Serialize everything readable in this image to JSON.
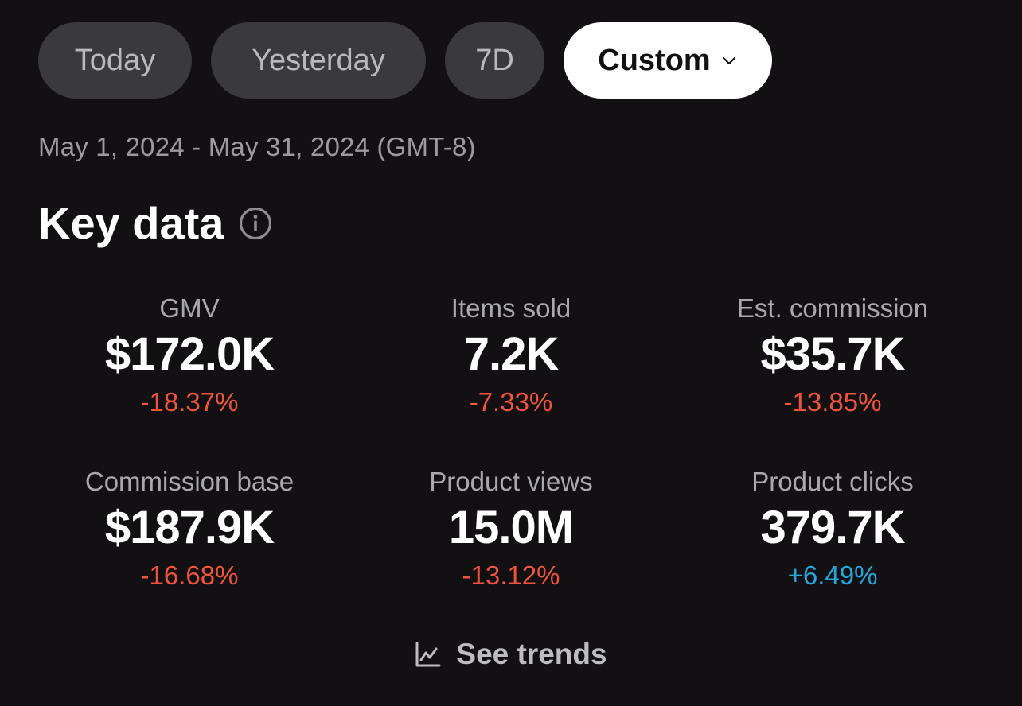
{
  "tabs": [
    {
      "label": "Today",
      "selected": false
    },
    {
      "label": "Yesterday",
      "selected": false
    },
    {
      "label": "7D",
      "selected": false
    },
    {
      "label": "Custom",
      "selected": true
    }
  ],
  "date_range": "May 1, 2024 - May 31, 2024 (GMT-8)",
  "section": {
    "title": "Key data",
    "info_icon": "info-circle-icon"
  },
  "metrics": [
    {
      "label": "GMV",
      "value": "$172.0K",
      "change": "-18.37%",
      "trend": "down"
    },
    {
      "label": "Items sold",
      "value": "7.2K",
      "change": "-7.33%",
      "trend": "down"
    },
    {
      "label": "Est. commission",
      "value": "$35.7K",
      "change": "-13.85%",
      "trend": "down"
    },
    {
      "label": "Commission base",
      "value": "$187.9K",
      "change": "-16.68%",
      "trend": "down"
    },
    {
      "label": "Product views",
      "value": "15.0M",
      "change": "-13.12%",
      "trend": "down"
    },
    {
      "label": "Product clicks",
      "value": "379.7K",
      "change": "+6.49%",
      "trend": "up"
    }
  ],
  "see_trends": {
    "label": "See trends",
    "icon": "line-chart-icon"
  },
  "colors": {
    "background": "#121013",
    "negative": "#f0543d",
    "positive": "#27a6dc",
    "tab_inactive": "#3a393c",
    "tab_active": "#ffffff"
  }
}
